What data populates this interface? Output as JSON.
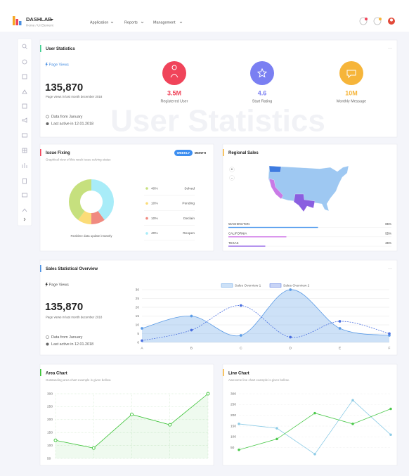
{
  "header": {
    "brand": "DASHLAB",
    "breadcrumb": "Home / UI Element",
    "nav": [
      "Application",
      "Reports",
      "Management"
    ]
  },
  "user_statistics": {
    "title": "User Statistics",
    "watermark": "User Statistics",
    "page_views_label": "Page Views",
    "total": "135,870",
    "caption": "Page views in last month december 2018",
    "notes": [
      "Data from January",
      "Last active in 12.01.2018"
    ],
    "stats": [
      {
        "value": "3.5M",
        "label": "Registered User",
        "color": "#f0445a"
      },
      {
        "value": "4.6",
        "label": "Start Rating",
        "color": "#7a7ff2"
      },
      {
        "value": "10M",
        "label": "Monthly Message",
        "color": "#f6b53a"
      }
    ]
  },
  "sales_overview": {
    "page_views_label": "Page Views",
    "total": "135,870",
    "caption": "Page views in last month december 2018",
    "notes": [
      "Data from January",
      "Last active in 12.01.2018"
    ]
  },
  "chart_data": [
    {
      "type": "pie",
      "title": "Issue Fixing",
      "subtitle": "Graphical view of this week issue solving status",
      "tabs": [
        "WEEKLY",
        "MONTH"
      ],
      "caption": "Realtime data update instantly",
      "categories": [
        "Solved",
        "Pending",
        "Declain",
        "Reopen"
      ],
      "values": [
        40,
        10,
        10,
        40
      ],
      "value_labels": [
        "40%",
        "10%",
        "10%",
        "40%"
      ],
      "colors": [
        "#c6e07e",
        "#fbdc78",
        "#f08a80",
        "#a8ecf8"
      ]
    },
    {
      "type": "bar",
      "title": "Regional Sales",
      "zoom": [
        "+",
        "-"
      ],
      "categories": [
        "WASHINGTON",
        "CALIFORNIA",
        "TEXAS"
      ],
      "values": [
        85,
        55,
        35
      ],
      "value_labels": [
        "85%",
        "55%",
        "35%"
      ],
      "colors": [
        "#5aa0ee",
        "#d07ae8",
        "#9a6de8"
      ],
      "xlim": [
        0,
        100
      ]
    },
    {
      "type": "line",
      "title": "Sales Statistical Overview",
      "categories": [
        "A",
        "B",
        "C",
        "D",
        "E",
        "F"
      ],
      "series": [
        {
          "name": "Sales Overview 1",
          "color": "#5b9be6",
          "fill": true,
          "values": [
            8,
            15,
            4,
            30,
            8,
            4
          ]
        },
        {
          "name": "Sales Overview 2",
          "color": "#4a6fe0",
          "dashed": true,
          "values": [
            1,
            7,
            21,
            3,
            12,
            5
          ]
        }
      ],
      "ylim": [
        0,
        30
      ],
      "yticks": [
        0,
        5,
        10,
        15,
        20,
        25,
        30
      ],
      "grid": true
    },
    {
      "type": "area",
      "title": "Area Chart",
      "subtitle": "Outstanding area chart example is given bellow.",
      "values": [
        120,
        90,
        220,
        180,
        300
      ],
      "color": "#39c234",
      "ylim": [
        50,
        300
      ],
      "yticks": [
        50,
        100,
        150,
        200,
        250,
        300
      ],
      "grid": true
    },
    {
      "type": "line",
      "title": "Line Chart",
      "subtitle": "Awesome line chart example is given bellow.",
      "series": [
        {
          "color": "#8ccbe6",
          "values": [
            160,
            140,
            20,
            270,
            110
          ]
        },
        {
          "color": "#4cc94c",
          "values": [
            40,
            90,
            210,
            160,
            230
          ]
        }
      ],
      "ylim": [
        0,
        300
      ],
      "yticks": [
        50,
        100,
        150,
        200,
        250,
        300
      ],
      "grid": true
    }
  ]
}
